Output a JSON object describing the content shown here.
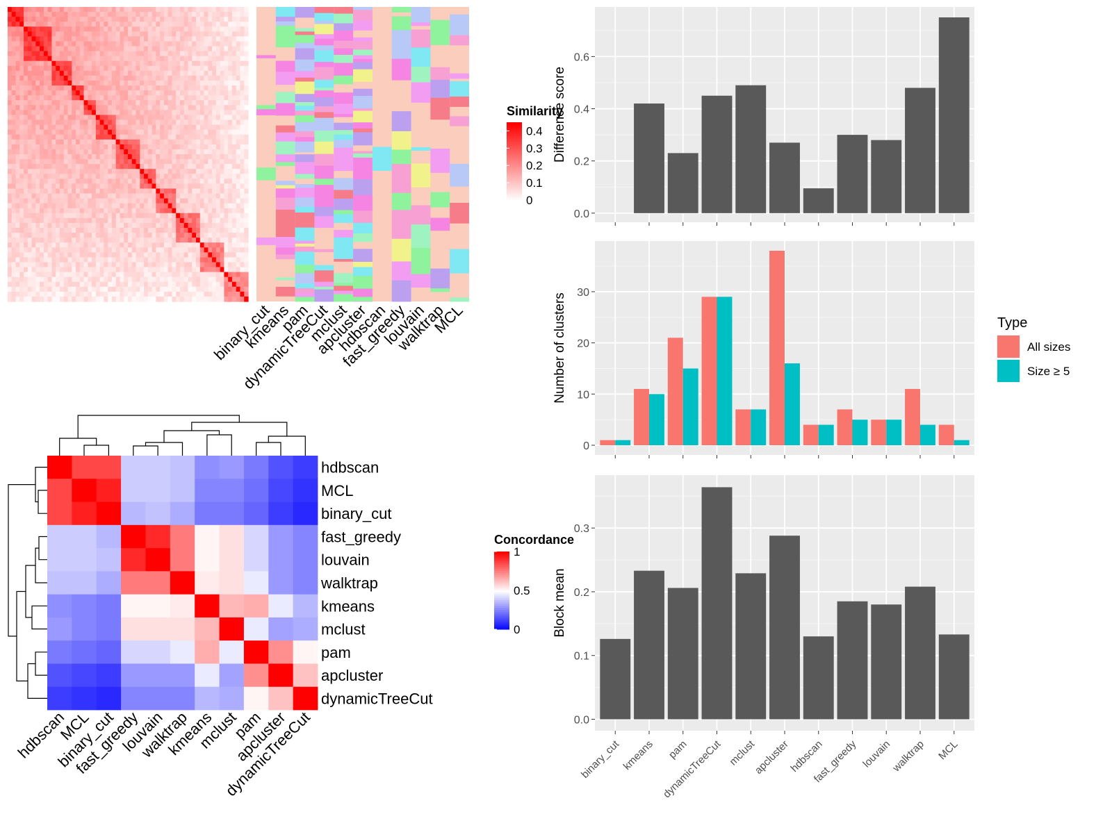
{
  "chart_data": [
    {
      "type": "heatmap",
      "name": "similarity-matrix",
      "legend_title": "Similarity",
      "legend_ticks": [
        "0",
        "0.1",
        "0.2",
        "0.3",
        "0.4"
      ],
      "color_range": [
        0,
        0.45
      ],
      "colors": {
        "low": "#ffffff",
        "high": "#ff0000"
      },
      "annotation_tracks": [
        "binary_cut",
        "kmeans",
        "pam",
        "dynamicTreeCut",
        "mclust",
        "apcluster",
        "hdbscan",
        "fast_greedy",
        "louvain",
        "walktrap",
        "MCL"
      ]
    },
    {
      "type": "heatmap",
      "name": "concordance-matrix",
      "legend_title": "Concordance",
      "legend_ticks": [
        "0",
        "0.5",
        "1"
      ],
      "color_range": [
        0,
        1
      ],
      "colors": {
        "low": "#0000ff",
        "mid": "#ffffff",
        "high": "#ff0000"
      },
      "rows": [
        "hdbscan",
        "MCL",
        "binary_cut",
        "fast_greedy",
        "louvain",
        "walktrap",
        "kmeans",
        "mclust",
        "pam",
        "apcluster",
        "dynamicTreeCut"
      ],
      "columns": [
        "hdbscan",
        "MCL",
        "binary_cut",
        "fast_greedy",
        "louvain",
        "walktrap",
        "kmeans",
        "mclust",
        "pam",
        "apcluster",
        "dynamicTreeCut"
      ],
      "values": [
        [
          1.0,
          0.86,
          0.86,
          0.4,
          0.4,
          0.38,
          0.28,
          0.3,
          0.24,
          0.16,
          0.12
        ],
        [
          0.86,
          1.0,
          0.94,
          0.4,
          0.4,
          0.38,
          0.26,
          0.26,
          0.22,
          0.14,
          0.1
        ],
        [
          0.86,
          0.94,
          1.0,
          0.36,
          0.38,
          0.34,
          0.24,
          0.24,
          0.2,
          0.12,
          0.08
        ],
        [
          0.4,
          0.4,
          0.36,
          1.0,
          0.92,
          0.76,
          0.52,
          0.56,
          0.42,
          0.3,
          0.26
        ],
        [
          0.4,
          0.4,
          0.38,
          0.92,
          1.0,
          0.76,
          0.52,
          0.56,
          0.42,
          0.3,
          0.26
        ],
        [
          0.38,
          0.38,
          0.34,
          0.76,
          0.76,
          1.0,
          0.54,
          0.56,
          0.46,
          0.3,
          0.26
        ],
        [
          0.28,
          0.26,
          0.24,
          0.52,
          0.52,
          0.54,
          1.0,
          0.64,
          0.66,
          0.46,
          0.36
        ],
        [
          0.3,
          0.26,
          0.24,
          0.56,
          0.56,
          0.56,
          0.64,
          1.0,
          0.46,
          0.32,
          0.34
        ],
        [
          0.24,
          0.22,
          0.2,
          0.42,
          0.42,
          0.46,
          0.66,
          0.46,
          1.0,
          0.72,
          0.52
        ],
        [
          0.16,
          0.14,
          0.12,
          0.3,
          0.3,
          0.3,
          0.46,
          0.32,
          0.72,
          1.0,
          0.62
        ],
        [
          0.12,
          0.1,
          0.08,
          0.26,
          0.26,
          0.26,
          0.36,
          0.34,
          0.52,
          0.62,
          1.0
        ]
      ]
    },
    {
      "type": "bar",
      "name": "difference-score",
      "categories": [
        "binary_cut",
        "kmeans",
        "pam",
        "dynamicTreeCut",
        "mclust",
        "apcluster",
        "hdbscan",
        "fast_greedy",
        "louvain",
        "walktrap",
        "MCL"
      ],
      "values": [
        0,
        0.42,
        0.23,
        0.45,
        0.49,
        0.27,
        0.095,
        0.3,
        0.28,
        0.48,
        0.75
      ],
      "ylabel": "Difference score",
      "ylim": [
        -0.035,
        0.79
      ],
      "yticks": [
        "0.0",
        "0.2",
        "0.4",
        "0.6"
      ],
      "color": "#595959"
    },
    {
      "type": "bar",
      "name": "number-of-clusters",
      "categories": [
        "binary_cut",
        "kmeans",
        "pam",
        "dynamicTreeCut",
        "mclust",
        "apcluster",
        "hdbscan",
        "fast_greedy",
        "louvain",
        "walktrap",
        "MCL"
      ],
      "series": [
        {
          "name": "All sizes",
          "values": [
            1,
            11,
            21,
            29,
            7,
            38,
            4,
            7,
            5,
            11,
            4
          ],
          "color": "#F8766D"
        },
        {
          "name": "Size ≥ 5",
          "values": [
            1,
            10,
            15,
            29,
            7,
            16,
            4,
            5,
            5,
            4,
            1
          ],
          "color": "#00BFC4"
        }
      ],
      "ylabel": "Number of clusters",
      "ylim": [
        -1.9,
        39.9
      ],
      "yticks": [
        "0",
        "10",
        "20",
        "30"
      ],
      "legend_title": "Type",
      "legend_position": "right"
    },
    {
      "type": "bar",
      "name": "block-mean",
      "categories": [
        "binary_cut",
        "kmeans",
        "pam",
        "dynamicTreeCut",
        "mclust",
        "apcluster",
        "hdbscan",
        "fast_greedy",
        "louvain",
        "walktrap",
        "MCL"
      ],
      "values": [
        0.126,
        0.233,
        0.206,
        0.364,
        0.229,
        0.288,
        0.13,
        0.185,
        0.18,
        0.208,
        0.133
      ],
      "ylabel": "Block mean",
      "ylim": [
        -0.018,
        0.383
      ],
      "yticks": [
        "0.0",
        "0.1",
        "0.2",
        "0.3"
      ],
      "color": "#595959"
    }
  ]
}
